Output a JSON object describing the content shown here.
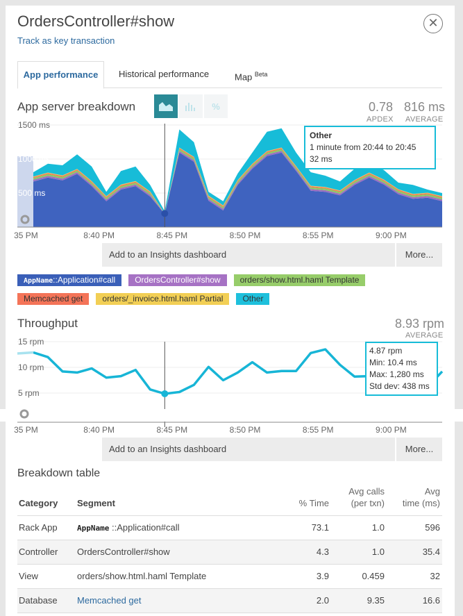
{
  "header": {
    "title": "OrdersController#show",
    "key_txn_link": "Track as key transaction",
    "close_icon": "close-circle-icon"
  },
  "tabs": [
    {
      "label": "App performance",
      "active": true
    },
    {
      "label": "Historical performance"
    },
    {
      "label": "Map",
      "sup": "Beta"
    }
  ],
  "breakdown": {
    "title": "App server breakdown",
    "view_buttons": [
      {
        "icon": "area-chart-icon",
        "active": true
      },
      {
        "icon": "bar-chart-icon"
      },
      {
        "icon": "percent-icon",
        "label": "%"
      }
    ],
    "apdex": {
      "value": "0.78",
      "label": "APDEX"
    },
    "average": {
      "value": "816 ms",
      "label": "AVERAGE"
    },
    "insights_label": "Add to an Insights dashboard",
    "more_label": "More...",
    "tooltip": {
      "title": "Other",
      "line1": "1 minute from 20:44 to 20:45",
      "line2": "32 ms"
    },
    "legend": [
      {
        "name_bold": "AppName",
        "name": "::Application#call",
        "color": "#3a5fb8",
        "text": "#ffffff"
      },
      {
        "name": "OrdersController#show",
        "color": "#a672c4",
        "text": "#ffffff"
      },
      {
        "name": "orders/show.html.haml Template",
        "color": "#97cd6a",
        "text": "#333333"
      },
      {
        "name": "Memcached get",
        "color": "#f47458",
        "text": "#333333"
      },
      {
        "name": "orders/_invoice.html.haml Partial",
        "color": "#f2cf55",
        "text": "#333333"
      },
      {
        "name": "Other",
        "color": "#1ec0dc",
        "text": "#333333"
      }
    ]
  },
  "throughput": {
    "title": "Throughput",
    "average": {
      "value": "8.93 rpm",
      "label": "AVERAGE"
    },
    "insights_label": "Add to an Insights dashboard",
    "more_label": "More...",
    "tooltip": {
      "line1": "4.87 rpm",
      "line2": "Min: 10.4 ms",
      "line3": "Max: 1,280 ms",
      "line4": "Std dev: 438 ms"
    }
  },
  "chart_data": [
    {
      "type": "area",
      "stacked": true,
      "x_start": "20:35",
      "x_step_minutes": 1,
      "yticks": [
        "1500 ms",
        "1000 ms",
        "500 ms"
      ],
      "ylim": [
        0,
        1500
      ],
      "xticks": [
        "35 PM",
        "8:40 PM",
        "8:45 PM",
        "8:50 PM",
        "8:55 PM",
        "9:00 PM"
      ],
      "grid": true,
      "series": [
        {
          "name": "AppName::Application#call",
          "color": "#3f63bf",
          "values": [
            670,
            728,
            687,
            782,
            602,
            381,
            551,
            602,
            449,
            194,
            1095,
            959,
            388,
            245,
            619,
            857,
            1044,
            1095,
            823,
            534,
            517,
            466,
            619,
            728,
            626,
            483,
            415,
            432,
            381
          ]
        },
        {
          "name": "OrdersController#show",
          "color": "#9b6fc0",
          "values": [
            25,
            25,
            25,
            25,
            25,
            25,
            25,
            25,
            25,
            2,
            25,
            25,
            25,
            25,
            25,
            25,
            25,
            25,
            25,
            25,
            25,
            25,
            25,
            25,
            25,
            25,
            25,
            25,
            25
          ]
        },
        {
          "name": "orders/show.html.haml Template",
          "color": "#8fc863",
          "values": [
            25,
            25,
            25,
            25,
            25,
            25,
            25,
            25,
            25,
            2,
            25,
            25,
            25,
            25,
            25,
            25,
            25,
            25,
            25,
            25,
            25,
            25,
            25,
            25,
            25,
            25,
            25,
            25,
            25
          ]
        },
        {
          "name": "Memcached get",
          "color": "#f0734f",
          "values": [
            15,
            15,
            15,
            15,
            15,
            15,
            15,
            15,
            15,
            1,
            15,
            15,
            15,
            15,
            15,
            15,
            15,
            15,
            15,
            15,
            15,
            15,
            15,
            15,
            15,
            15,
            15,
            15,
            15
          ]
        },
        {
          "name": "orders/_invoice.html.haml Partial",
          "color": "#f1cd50",
          "values": [
            8,
            8,
            8,
            8,
            8,
            8,
            8,
            8,
            8,
            1,
            8,
            8,
            8,
            8,
            8,
            8,
            8,
            8,
            8,
            8,
            8,
            8,
            8,
            8,
            8,
            8,
            8,
            8,
            8
          ]
        },
        {
          "name": "Other",
          "color": "#17bcd8",
          "values": [
            63,
            131,
            148,
            213,
            216,
            63,
            199,
            216,
            97,
            32,
            267,
            216,
            56,
            63,
            97,
            165,
            284,
            284,
            199,
            199,
            165,
            131,
            165,
            141,
            141,
            97,
            131,
            46,
            46
          ]
        }
      ],
      "highlight_index": 9
    },
    {
      "type": "line",
      "x_start": "20:35",
      "x_step_minutes": 1,
      "yticks": [
        "15 rpm",
        "10 rpm",
        "5 rpm"
      ],
      "ylim": [
        0,
        15
      ],
      "xticks": [
        "35 PM",
        "8:40 PM",
        "8:45 PM",
        "8:50 PM",
        "8:55 PM",
        "9:00 PM"
      ],
      "grid": true,
      "series": [
        {
          "color": "#17b5d6",
          "values": [
            12.9,
            12.0,
            9.2,
            9.0,
            9.8,
            8.0,
            8.3,
            9.5,
            5.7,
            4.87,
            5.2,
            6.6,
            10.1,
            7.5,
            9.0,
            11.0,
            9.0,
            9.3,
            9.3,
            12.8,
            13.5,
            10.5,
            8.2,
            8.3,
            8.0,
            7.5,
            6.5,
            6.2,
            9.2
          ]
        }
      ],
      "highlight_index": 9
    }
  ],
  "table": {
    "title": "Breakdown table",
    "headers": {
      "category": "Category",
      "segment": "Segment",
      "pct": "% Time",
      "calls1": "Avg calls",
      "calls2": "(per txn)",
      "avg1": "Avg",
      "avg2": "time (ms)"
    },
    "rows": [
      {
        "category": "Rack App",
        "segment_bold": "AppName",
        "segment": "::Application#call",
        "pct": "73.1",
        "calls": "1.0",
        "avg": "596"
      },
      {
        "category": "Controller",
        "segment": "OrdersController#show",
        "pct": "4.3",
        "calls": "1.0",
        "avg": "35.4"
      },
      {
        "category": "View",
        "segment": "orders/show.html.haml Template",
        "pct": "3.9",
        "calls": "0.459",
        "avg": "32"
      },
      {
        "category": "Database",
        "segment": "Memcached get",
        "pct": "2.0",
        "calls": "9.35",
        "avg": "16.6",
        "link": true
      }
    ]
  }
}
